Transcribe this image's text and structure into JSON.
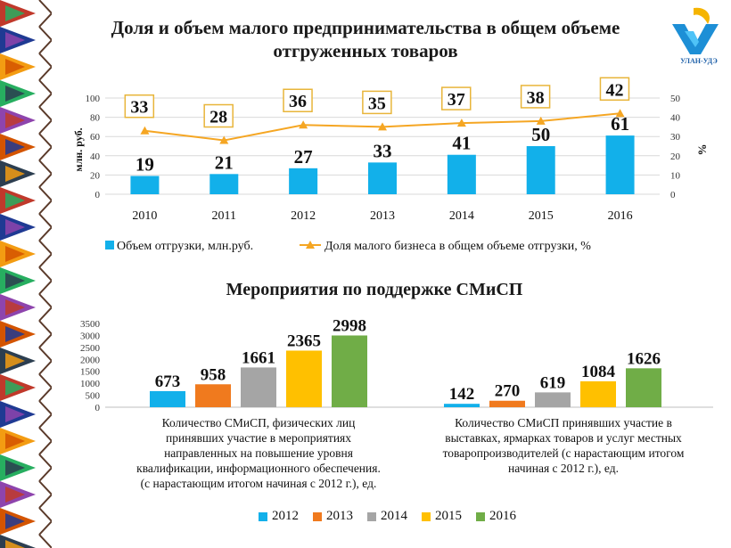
{
  "header": {
    "title": "Доля и объем малого предпринимательства в общем объеме отгруженных товаров",
    "logo_text": "УЛАН-УДЭ"
  },
  "colors": {
    "bar_blue": "#12b0ea",
    "line_orange": "#f5a623",
    "s2012": "#12b0ea",
    "s2013": "#f07a1e",
    "s2014": "#a5a5a5",
    "s2015": "#ffc000",
    "s2016": "#70ad47"
  },
  "chart_data": [
    {
      "type": "bar+line",
      "title": "Доля и объем малого предпринимательства в общем объеме отгруженных товаров",
      "categories": [
        "2010",
        "2011",
        "2012",
        "2013",
        "2014",
        "2015",
        "2016"
      ],
      "series": [
        {
          "name": "Объем отгрузки, млн.руб.",
          "type": "bar",
          "axis": "left",
          "values": [
            19,
            21,
            27,
            33,
            41,
            50,
            61
          ]
        },
        {
          "name": "Доля малого бизнеса в общем объеме отгрузки, %",
          "type": "line",
          "axis": "right",
          "values": [
            33,
            28,
            36,
            35,
            37,
            38,
            42
          ]
        }
      ],
      "ylabel": "млн. руб.",
      "y2label": "%",
      "ylim": [
        0,
        100
      ],
      "y_ticks": [
        "0",
        "20",
        "40",
        "60",
        "80",
        "100"
      ],
      "y2lim": [
        0,
        50
      ],
      "y2_ticks": [
        "0",
        "10",
        "20",
        "30",
        "40",
        "50"
      ],
      "grid": true,
      "legend": "bottom"
    },
    {
      "type": "bar",
      "title": "Мероприятия по поддержке СМиСП",
      "categories": [
        "Количество СМиСП, физических лиц принявших участие в мероприятиях направленных на повышение уровня квалификации, информационного обеспечения. (с нарастающим итогом начиная с 2012 г.), ед.",
        "Количество СМиСП принявших участие в выставках, ярмарках товаров и услуг местных товаропроизводителей (с нарастающим итогом начиная с 2012 г.), ед."
      ],
      "category_lines": [
        [
          "Количество СМиСП, физических лиц",
          "принявших участие в мероприятиях",
          "направленных на повышение уровня",
          "квалификации, информационного обеспечения.",
          "(с нарастающим итогом начиная с 2012 г.), ед."
        ],
        [
          "Количество СМиСП принявших участие в",
          "выставках, ярмарках товаров и услуг местных",
          "товаропроизводителей (с нарастающим итогом",
          "начиная с 2012 г.), ед."
        ]
      ],
      "series": [
        {
          "name": "2012",
          "values": [
            673,
            142
          ]
        },
        {
          "name": "2013",
          "values": [
            958,
            270
          ]
        },
        {
          "name": "2014",
          "values": [
            1661,
            619
          ]
        },
        {
          "name": "2015",
          "values": [
            2365,
            1084
          ]
        },
        {
          "name": "2016",
          "values": [
            2998,
            1626
          ]
        }
      ],
      "ylim": [
        0,
        3500
      ],
      "y_ticks": [
        "0",
        "500",
        "1000",
        "1500",
        "2000",
        "2500",
        "3000",
        "3500"
      ],
      "grid": false,
      "legend": "bottom"
    }
  ]
}
